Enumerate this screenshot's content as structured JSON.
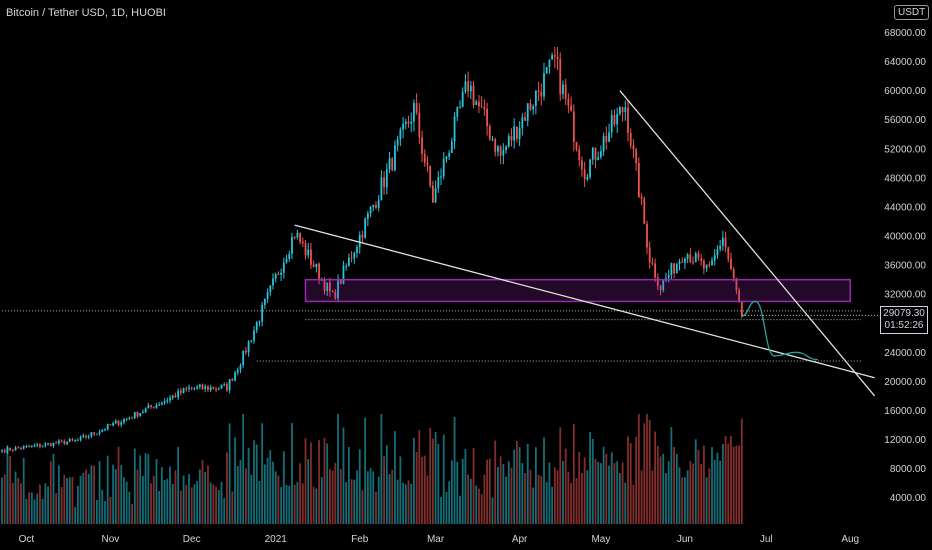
{
  "header": {
    "symbol": "Bitcoin / Tether USD, 1D, HUOBI",
    "currency": "USDT"
  },
  "price_tag": {
    "price": "29079.30",
    "countdown": "01:52:26"
  },
  "chart_data": {
    "type": "candlestick",
    "title": "Bitcoin / Tether USD, 1D, HUOBI",
    "x_ticks": [
      "Oct",
      "Nov",
      "Dec",
      "2021",
      "Feb",
      "Mar",
      "Apr",
      "May",
      "Jun",
      "Jul",
      "Aug"
    ],
    "y_ticks": [
      "4000.00",
      "8000.00",
      "12000.00",
      "16000.00",
      "20000.00",
      "24000.00",
      "28000.00",
      "32000.00",
      "36000.00",
      "40000.00",
      "44000.00",
      "48000.00",
      "52000.00",
      "56000.00",
      "60000.00",
      "64000.00",
      "68000.00"
    ],
    "ylim": [
      -1000,
      70000
    ],
    "y_scale": "linear",
    "last_price": 29079.3,
    "colors": {
      "up": "#26c6da",
      "down": "#ef5350",
      "zone": "#9c27b0",
      "projection": "#26a69a"
    },
    "price_path": [
      {
        "date": "2020-09-22",
        "close": 10500
      },
      {
        "date": "2020-10-20",
        "close": 11900
      },
      {
        "date": "2020-11-10",
        "close": 15400
      },
      {
        "date": "2020-11-30",
        "close": 19000
      },
      {
        "date": "2020-12-14",
        "close": 19200
      },
      {
        "date": "2020-12-20",
        "close": 23500
      },
      {
        "date": "2021-01-08",
        "close": 40500
      },
      {
        "date": "2021-01-22",
        "close": 31500
      },
      {
        "date": "2021-02-08",
        "close": 46000
      },
      {
        "date": "2021-02-21",
        "close": 57500
      },
      {
        "date": "2021-02-28",
        "close": 45000
      },
      {
        "date": "2021-03-13",
        "close": 61000
      },
      {
        "date": "2021-03-25",
        "close": 51000
      },
      {
        "date": "2021-04-14",
        "close": 64000
      },
      {
        "date": "2021-04-25",
        "close": 49000
      },
      {
        "date": "2021-05-10",
        "close": 58000
      },
      {
        "date": "2021-05-19",
        "close": 37000
      },
      {
        "date": "2021-05-23",
        "close": 33000
      },
      {
        "date": "2021-06-01",
        "close": 38000
      },
      {
        "date": "2021-06-10",
        "close": 35000
      },
      {
        "date": "2021-06-15",
        "close": 40000
      },
      {
        "date": "2021-06-22",
        "close": 29079.3
      }
    ],
    "annotations": {
      "support_zone": {
        "from": "2021-01-12",
        "to": "2021-08-01",
        "low": 31000,
        "high": 34000
      },
      "horizontal_levels": [
        {
          "price": 29700,
          "from": "2020-09-22",
          "to": "2021-08-05",
          "style": "dotted"
        },
        {
          "price": 28500,
          "from": "2021-01-12",
          "to": "2021-08-05",
          "style": "dotted"
        },
        {
          "price": 22800,
          "from": "2020-12-25",
          "to": "2021-08-05",
          "style": "dotted"
        }
      ],
      "trend_lines": [
        {
          "from": {
            "date": "2021-01-08",
            "price": 41500
          },
          "to": {
            "date": "2021-08-10",
            "price": 20500
          }
        },
        {
          "from": {
            "date": "2021-05-08",
            "price": 60000
          },
          "to": {
            "date": "2021-08-10",
            "price": 18000
          }
        }
      ],
      "projection_path": [
        {
          "date": "2021-06-22",
          "price": 29000
        },
        {
          "date": "2021-06-27",
          "price": 31000
        },
        {
          "date": "2021-07-04",
          "price": 23500
        },
        {
          "date": "2021-07-12",
          "price": 24000
        },
        {
          "date": "2021-07-20",
          "price": 23000
        }
      ]
    }
  }
}
